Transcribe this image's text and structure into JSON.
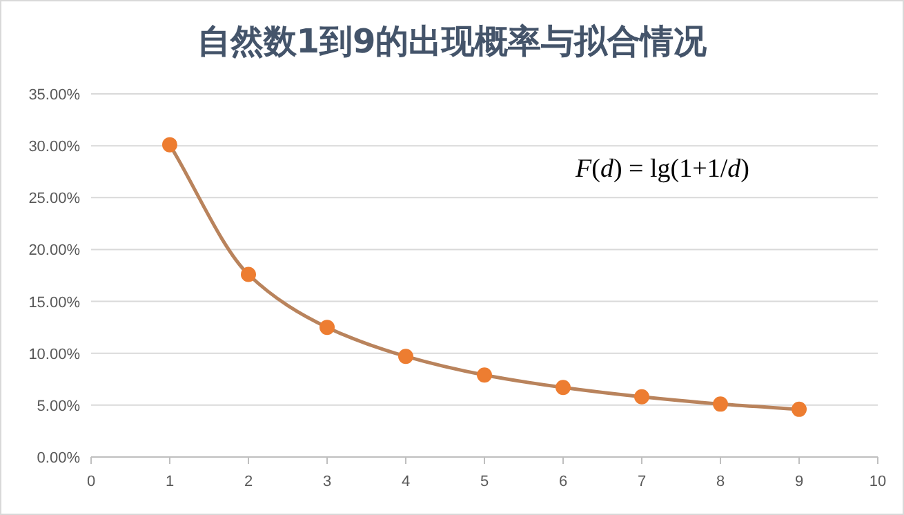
{
  "chart_data": {
    "type": "scatter",
    "title": "自然数1到9的出现概率与拟合情况",
    "x": [
      1,
      2,
      3,
      4,
      5,
      6,
      7,
      8,
      9
    ],
    "series": [
      {
        "color": "#ed7d31",
        "values": [
          30.1,
          17.6,
          12.5,
          9.7,
          7.9,
          6.7,
          5.8,
          5.1,
          4.6
        ],
        "marker": "circle"
      },
      {
        "type": "line",
        "color": "#b9835c",
        "x": [
          1,
          2,
          3,
          4,
          5,
          6,
          7,
          8,
          9
        ],
        "values": [
          30.1,
          17.6,
          12.5,
          9.7,
          7.9,
          6.7,
          5.8,
          5.1,
          4.6
        ],
        "line_style": "solid",
        "marker": "none"
      }
    ],
    "xlim": [
      0,
      10
    ],
    "xticks": [
      0,
      1,
      2,
      3,
      4,
      5,
      6,
      7,
      8,
      9,
      10
    ],
    "ylim": [
      0,
      35
    ],
    "yticks": [
      {
        "value": 0,
        "label": "0.00%"
      },
      {
        "value": 5,
        "label": "5.00%"
      },
      {
        "value": 10,
        "label": "10.00%"
      },
      {
        "value": 15,
        "label": "15.00%"
      },
      {
        "value": 20,
        "label": "20.00%"
      },
      {
        "value": 25,
        "label": "25.00%"
      },
      {
        "value": 30,
        "label": "30.00%"
      },
      {
        "value": 35,
        "label": "35.00%"
      }
    ],
    "grid": "y",
    "annotations": [
      "*F*(*d*) = lg(1+1/*d*)"
    ]
  }
}
